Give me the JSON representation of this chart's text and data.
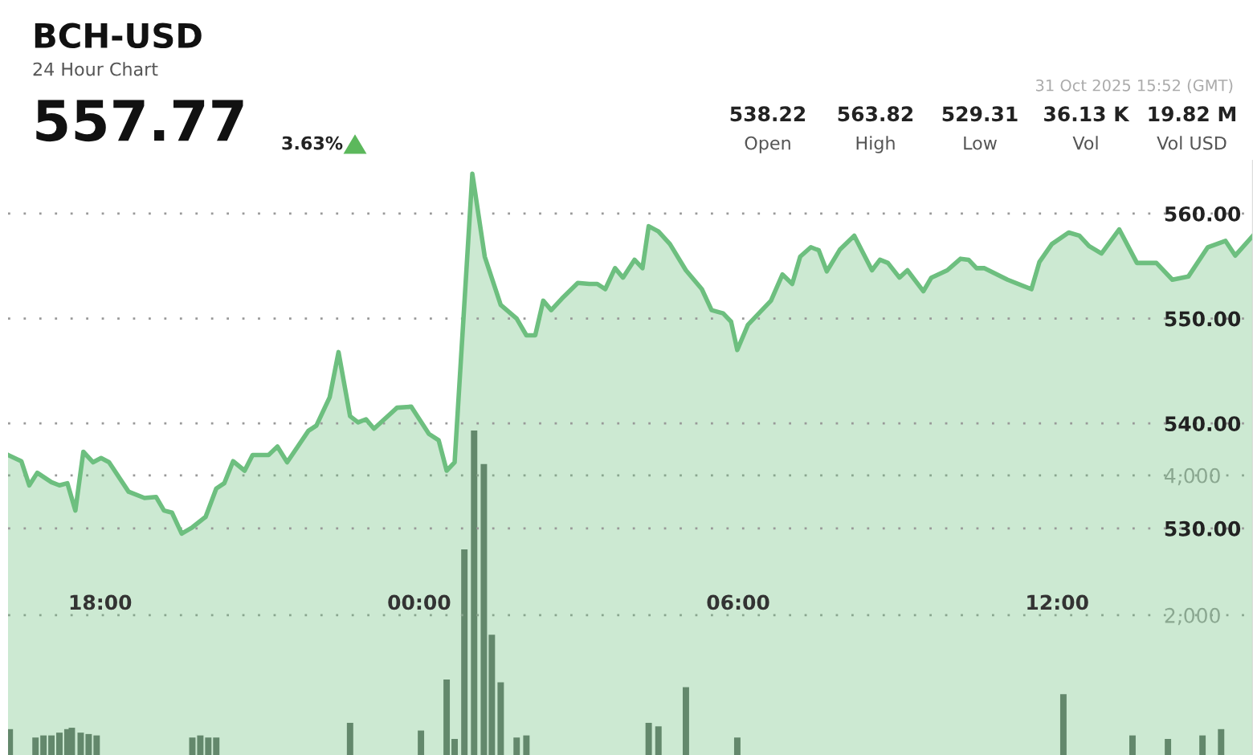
{
  "chart_data": {
    "type": "area",
    "title": "BCH-USD",
    "subtitle": "24 Hour Chart",
    "annotations": [
      "557.77",
      "3.63%",
      "31 Oct 2025 15:52 (GMT)",
      "538.22",
      "Open",
      "563.82",
      "High",
      "529.31",
      "Low",
      "36.13 K",
      "Vol",
      "19.82 M",
      "Vol USD"
    ],
    "xlim": [
      "2025-10-30T16:16",
      "2025-10-31T15:41"
    ],
    "xticks": [
      {
        "value": "2025-10-30T18:00",
        "label": "18:00"
      },
      {
        "value": "2025-10-31T00:00",
        "label": "00:00"
      },
      {
        "value": "2025-10-31T06:00",
        "label": "06:00"
      },
      {
        "value": "2025-10-31T12:00",
        "label": "12:00"
      }
    ],
    "ylim": [
      508.4,
      565.05
    ],
    "yticks": [
      {
        "value": 530,
        "label": "530.00"
      },
      {
        "value": 540,
        "label": "540.00"
      },
      {
        "value": 550,
        "label": "550.00"
      },
      {
        "value": 560,
        "label": "560.00"
      }
    ],
    "y2lim": [
      0,
      8500
    ],
    "y2ticks": [
      {
        "value": 2000,
        "label": "2,000"
      },
      {
        "value": 4000,
        "label": "4,000"
      }
    ],
    "grid": "y",
    "legend": false,
    "series": [
      {
        "color": "#6dbf7f",
        "x": [
          "2025-10-30T16:16",
          "2025-10-30T16:31",
          "2025-10-30T16:40",
          "2025-10-30T16:49",
          "2025-10-30T17:05",
          "2025-10-30T17:14",
          "2025-10-30T17:23",
          "2025-10-30T17:32",
          "2025-10-30T17:41",
          "2025-10-30T17:52",
          "2025-10-30T18:01",
          "2025-10-30T18:10",
          "2025-10-30T18:32",
          "2025-10-30T18:50",
          "2025-10-30T19:03",
          "2025-10-30T19:12",
          "2025-10-30T19:21",
          "2025-10-30T19:32",
          "2025-10-30T19:44",
          "2025-10-30T19:59",
          "2025-10-30T20:11",
          "2025-10-30T20:20",
          "2025-10-30T20:30",
          "2025-10-30T20:43",
          "2025-10-30T20:52",
          "2025-10-30T21:10",
          "2025-10-30T21:20",
          "2025-10-30T21:31",
          "2025-10-30T21:55",
          "2025-10-30T22:04",
          "2025-10-30T22:19",
          "2025-10-30T22:29",
          "2025-10-30T22:42",
          "2025-10-30T22:51",
          "2025-10-30T23:00",
          "2025-10-30T23:09",
          "2025-10-30T23:35",
          "2025-10-30T23:51",
          "2025-10-31T00:11",
          "2025-10-31T00:22",
          "2025-10-31T00:31",
          "2025-10-31T00:40",
          "2025-10-31T01:00",
          "2025-10-31T01:14",
          "2025-10-31T01:32",
          "2025-10-31T01:50",
          "2025-10-31T02:01",
          "2025-10-31T02:11",
          "2025-10-31T02:20",
          "2025-10-31T02:29",
          "2025-10-31T02:41",
          "2025-10-31T02:59",
          "2025-10-31T03:12",
          "2025-10-31T03:21",
          "2025-10-31T03:30",
          "2025-10-31T03:41",
          "2025-10-31T03:50",
          "2025-10-31T04:03",
          "2025-10-31T04:12",
          "2025-10-31T04:19",
          "2025-10-31T04:30",
          "2025-10-31T04:43",
          "2025-10-31T05:01",
          "2025-10-31T05:19",
          "2025-10-31T05:30",
          "2025-10-31T05:43",
          "2025-10-31T05:52",
          "2025-10-31T05:59",
          "2025-10-31T06:11",
          "2025-10-31T06:37",
          "2025-10-31T06:50",
          "2025-10-31T07:01",
          "2025-10-31T07:10",
          "2025-10-31T07:22",
          "2025-10-31T07:31",
          "2025-10-31T07:40",
          "2025-10-31T07:55",
          "2025-10-31T08:11",
          "2025-10-31T08:31",
          "2025-10-31T08:40",
          "2025-10-31T08:49",
          "2025-10-31T09:02",
          "2025-10-31T09:11",
          "2025-10-31T09:29",
          "2025-10-31T09:38",
          "2025-10-31T09:56",
          "2025-10-31T10:11",
          "2025-10-31T10:20",
          "2025-10-31T10:29",
          "2025-10-31T10:38",
          "2025-10-31T11:04",
          "2025-10-31T11:31",
          "2025-10-31T11:40",
          "2025-10-31T11:54",
          "2025-10-31T12:13",
          "2025-10-31T12:25",
          "2025-10-31T12:36",
          "2025-10-31T12:50",
          "2025-10-31T13:10",
          "2025-10-31T13:30",
          "2025-10-31T13:52",
          "2025-10-31T14:10",
          "2025-10-31T14:28",
          "2025-10-31T14:50",
          "2025-10-31T15:10",
          "2025-10-31T15:21",
          "2025-10-31T15:41"
        ],
        "values": [
          537.0,
          536.4,
          534.1,
          535.3,
          534.4,
          534.1,
          534.3,
          531.7,
          537.3,
          536.3,
          536.7,
          536.3,
          533.5,
          532.9,
          533.0,
          531.7,
          531.5,
          529.5,
          530.1,
          531.1,
          533.8,
          534.3,
          536.4,
          535.5,
          537.0,
          537.0,
          537.8,
          536.3,
          539.3,
          539.8,
          542.5,
          546.8,
          540.7,
          540.1,
          540.4,
          539.5,
          541.5,
          541.6,
          539.0,
          538.4,
          535.5,
          536.3,
          563.8,
          555.9,
          551.3,
          550.0,
          548.4,
          548.4,
          551.7,
          550.8,
          551.9,
          553.4,
          553.3,
          553.3,
          552.8,
          554.8,
          553.9,
          555.6,
          554.8,
          558.8,
          558.3,
          557.1,
          554.6,
          552.8,
          550.8,
          550.5,
          549.7,
          547.0,
          549.4,
          551.7,
          554.2,
          553.3,
          555.9,
          556.8,
          556.5,
          554.5,
          556.6,
          557.9,
          554.6,
          555.6,
          555.3,
          553.9,
          554.6,
          552.6,
          553.9,
          554.6,
          555.7,
          555.6,
          554.8,
          554.8,
          553.7,
          552.8,
          555.4,
          557.1,
          558.2,
          557.9,
          556.9,
          556.2,
          558.5,
          555.3,
          555.3,
          553.7,
          554.0,
          556.8,
          557.4,
          556.0,
          557.9
        ]
      },
      {
        "type": "bar",
        "axis": "y2",
        "color": "#5f6b63",
        "x": [
          "2025-10-30T16:18",
          "2025-10-30T16:47",
          "2025-10-30T16:56",
          "2025-10-30T17:05",
          "2025-10-30T17:14",
          "2025-10-30T17:23",
          "2025-10-30T17:28",
          "2025-10-30T17:38",
          "2025-10-30T17:47",
          "2025-10-30T17:56",
          "2025-10-30T19:44",
          "2025-10-30T19:53",
          "2025-10-30T20:02",
          "2025-10-30T20:11",
          "2025-10-30T22:42",
          "2025-10-31T00:02",
          "2025-10-31T00:31",
          "2025-10-31T00:40",
          "2025-10-31T00:51",
          "2025-10-31T01:02",
          "2025-10-31T01:13",
          "2025-10-31T01:22",
          "2025-10-31T01:32",
          "2025-10-31T01:50",
          "2025-10-31T02:01",
          "2025-10-31T04:19",
          "2025-10-31T04:30",
          "2025-10-31T05:01",
          "2025-10-31T05:59",
          "2025-10-31T12:07",
          "2025-10-31T13:25",
          "2025-10-31T14:05",
          "2025-10-31T14:44",
          "2025-10-31T15:05"
        ],
        "values": [
          370,
          250,
          280,
          280,
          320,
          370,
          390,
          320,
          300,
          280,
          250,
          280,
          250,
          250,
          460,
          350,
          1080,
          230,
          2940,
          4640,
          4160,
          1720,
          1040,
          250,
          280,
          460,
          410,
          970,
          250,
          870,
          280,
          230,
          280,
          370
        ]
      }
    ]
  }
}
